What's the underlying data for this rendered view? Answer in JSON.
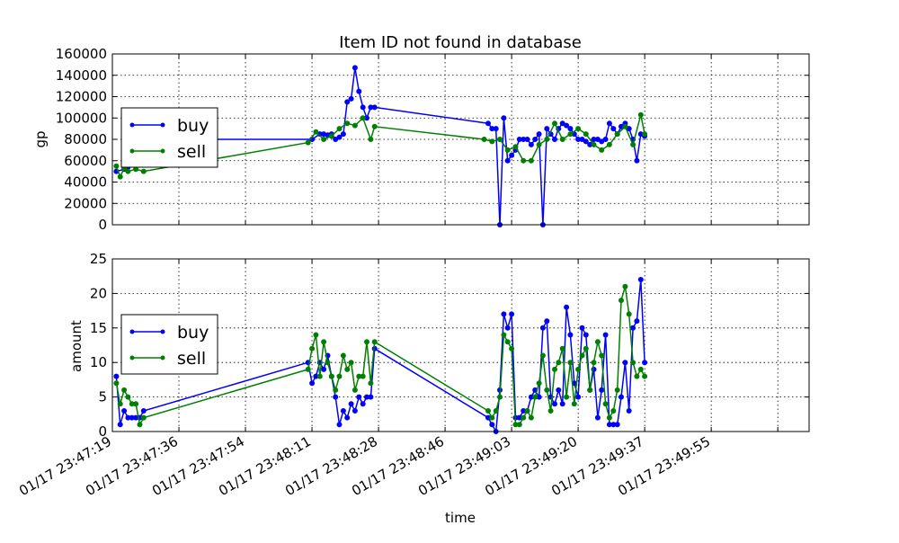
{
  "chart_data": [
    {
      "type": "line",
      "title": "Item ID not found in database",
      "ylabel": "gp",
      "ylim": [
        0,
        160000
      ],
      "yticks": [
        0,
        20000,
        40000,
        60000,
        80000,
        100000,
        120000,
        140000,
        160000
      ],
      "grid": true,
      "legend": "center-left",
      "series": [
        {
          "name": "buy",
          "color": "#0000ff",
          "x": [
            1,
            3,
            4,
            8,
            13,
            15,
            16,
            51,
            53,
            54,
            55,
            56,
            57,
            58,
            59,
            60,
            61,
            62,
            63,
            64,
            65,
            66,
            67,
            96,
            97,
            98,
            99,
            100,
            101,
            102,
            103,
            104,
            105,
            106,
            107,
            108,
            109,
            110,
            111,
            112,
            113,
            114,
            115,
            116,
            117,
            118,
            119,
            120,
            121,
            122,
            123,
            124,
            125,
            126,
            127,
            128,
            129,
            130,
            131,
            132,
            133,
            134,
            135,
            136
          ],
          "y": [
            50000,
            52000,
            54000,
            80000,
            80000,
            80000,
            80000,
            80000,
            85000,
            85000,
            84000,
            85000,
            80000,
            82000,
            85000,
            115000,
            118000,
            147000,
            125000,
            110000,
            100000,
            110000,
            110000,
            95000,
            90000,
            90000,
            0,
            100000,
            60000,
            65000,
            70000,
            80000,
            80000,
            80000,
            75000,
            80000,
            85000,
            0,
            90000,
            85000,
            80000,
            90000,
            95000,
            93000,
            90000,
            85000,
            80000,
            80000,
            78000,
            75000,
            80000,
            80000,
            78000,
            80000,
            95000,
            90000,
            85000,
            92000,
            95000,
            90000,
            80000,
            60000,
            85000,
            83000
          ]
        },
        {
          "name": "sell",
          "color": "#008000",
          "x": [
            1,
            2,
            3,
            4,
            6,
            8,
            50,
            52,
            54,
            56,
            58,
            60,
            62,
            64,
            66,
            67,
            95,
            97,
            99,
            101,
            103,
            105,
            107,
            109,
            111,
            113,
            115,
            117,
            119,
            121,
            123,
            125,
            127,
            129,
            131,
            133,
            135,
            136
          ],
          "y": [
            55000,
            45000,
            53000,
            50000,
            52000,
            50000,
            77000,
            87000,
            80000,
            83000,
            90000,
            95000,
            93000,
            100000,
            80000,
            92000,
            80000,
            78000,
            80000,
            70000,
            73000,
            60000,
            60000,
            75000,
            80000,
            95000,
            80000,
            85000,
            90000,
            85000,
            75000,
            70000,
            75000,
            85000,
            92000,
            75000,
            103000,
            85000
          ]
        }
      ]
    },
    {
      "type": "line",
      "ylabel": "amount",
      "xlabel": "time",
      "ylim": [
        0,
        25
      ],
      "yticks": [
        0,
        5,
        10,
        15,
        20,
        25
      ],
      "grid": true,
      "legend": "center-left",
      "xlim": [
        0,
        178
      ],
      "xtick_values": [
        0,
        17,
        34,
        51,
        68,
        85,
        102,
        119,
        136,
        153,
        170
      ],
      "xtick_labels": [
        "01/17 23:47:19",
        "01/17 23:47:36",
        "01/17 23:47:54",
        "01/17 23:48:11",
        "01/17 23:48:28",
        "01/17 23:48:46",
        "01/17 23:49:03",
        "01/17 23:49:20",
        "01/17 23:49:37",
        "01/17 23:49:55",
        ""
      ],
      "series": [
        {
          "name": "buy",
          "color": "#0000ff",
          "x": [
            1,
            2,
            3,
            4,
            5,
            6,
            7,
            8,
            50,
            51,
            52,
            53,
            54,
            55,
            56,
            57,
            58,
            59,
            60,
            61,
            62,
            63,
            64,
            65,
            66,
            67,
            96,
            97,
            98,
            99,
            100,
            101,
            102,
            103,
            104,
            105,
            106,
            107,
            108,
            109,
            110,
            111,
            112,
            113,
            114,
            115,
            116,
            117,
            118,
            119,
            120,
            121,
            122,
            123,
            124,
            125,
            126,
            127,
            128,
            129,
            130,
            131,
            132,
            133,
            134,
            135,
            136
          ],
          "y": [
            8,
            1,
            3,
            2,
            2,
            2,
            2,
            3,
            10,
            7,
            8,
            10,
            9,
            11,
            8,
            5,
            1,
            3,
            2,
            4,
            3,
            5,
            4,
            5,
            5,
            12,
            2,
            1,
            0,
            6,
            17,
            15,
            17,
            2,
            2,
            3,
            3,
            5,
            6,
            5,
            15,
            16,
            5,
            4,
            6,
            4,
            18,
            14,
            7,
            5,
            15,
            14,
            6,
            9,
            2,
            6,
            14,
            1,
            1,
            1,
            5,
            10,
            3,
            15,
            16,
            22,
            10
          ]
        },
        {
          "name": "sell",
          "color": "#008000",
          "x": [
            1,
            2,
            3,
            4,
            5,
            6,
            7,
            8,
            50,
            51,
            52,
            53,
            54,
            55,
            56,
            57,
            58,
            59,
            60,
            61,
            62,
            63,
            64,
            65,
            66,
            67,
            96,
            97,
            98,
            99,
            100,
            101,
            102,
            103,
            104,
            105,
            106,
            107,
            108,
            109,
            110,
            111,
            112,
            113,
            114,
            115,
            116,
            117,
            118,
            119,
            120,
            121,
            122,
            123,
            124,
            125,
            126,
            127,
            128,
            129,
            130,
            131,
            132,
            133,
            134,
            135,
            136
          ],
          "y": [
            7,
            4,
            6,
            5,
            4,
            4,
            1,
            2,
            9,
            12,
            14,
            8,
            13,
            10,
            8,
            6,
            8,
            11,
            9,
            10,
            6,
            8,
            8,
            13,
            7,
            13,
            3,
            2,
            3,
            5,
            14,
            13,
            12,
            1,
            1,
            2,
            3,
            2,
            5,
            7,
            11,
            6,
            3,
            9,
            10,
            12,
            5,
            10,
            4,
            9,
            11,
            12,
            6,
            10,
            13,
            11,
            4,
            2,
            3,
            6,
            19,
            21,
            17,
            10,
            8,
            9,
            8
          ]
        }
      ]
    }
  ]
}
